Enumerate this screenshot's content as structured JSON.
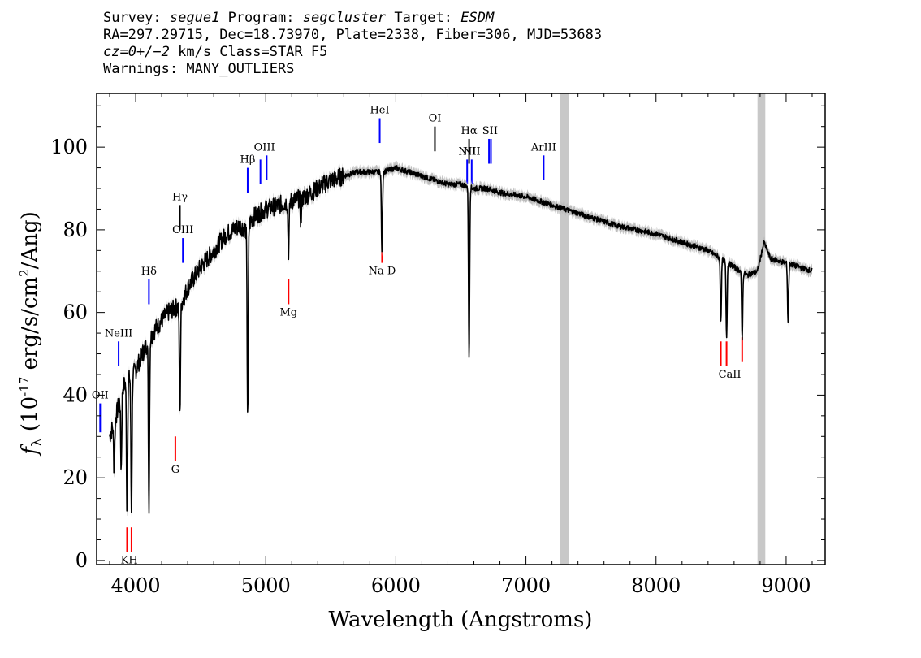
{
  "header": {
    "survey_label": "Survey:",
    "survey": "segue1",
    "program_label": "Program:",
    "program": "segcluster",
    "target_label": "Target:",
    "target": "ESDM",
    "line2": "RA=297.29715, Dec=18.73970, Plate=2338, Fiber=306, MJD=53683",
    "cz": "cz=0+/−2",
    "cz_rest": " km/s Class=STAR F5",
    "warnings": "Warnings: MANY_OUTLIERS"
  },
  "chart_data": {
    "type": "line",
    "xlabel": "Wavelength (Angstroms)",
    "ylabel": "f_λ (10^-17 erg/s/cm^2/Ang)",
    "xlim": [
      3700,
      9300
    ],
    "ylim": [
      -1,
      113
    ],
    "xticks": [
      4000,
      5000,
      6000,
      7000,
      8000,
      9000
    ],
    "yticks": [
      0,
      20,
      40,
      60,
      80,
      100
    ],
    "grid": false,
    "masked_regions": [
      [
        7260,
        7330
      ],
      [
        8780,
        8840
      ]
    ],
    "series": [
      {
        "color": "#000000",
        "continuum": [
          [
            3800,
            30
          ],
          [
            3850,
            35
          ],
          [
            3900,
            42
          ],
          [
            3950,
            44
          ],
          [
            4000,
            46
          ],
          [
            4050,
            50
          ],
          [
            4100,
            53
          ],
          [
            4150,
            56
          ],
          [
            4200,
            58
          ],
          [
            4250,
            60
          ],
          [
            4300,
            61
          ],
          [
            4350,
            62
          ],
          [
            4400,
            66
          ],
          [
            4500,
            71
          ],
          [
            4600,
            75
          ],
          [
            4700,
            79
          ],
          [
            4800,
            81
          ],
          [
            4850,
            80
          ],
          [
            4900,
            83
          ],
          [
            5000,
            85
          ],
          [
            5100,
            86
          ],
          [
            5200,
            87
          ],
          [
            5300,
            88
          ],
          [
            5400,
            90
          ],
          [
            5500,
            92
          ],
          [
            5600,
            93
          ],
          [
            5700,
            94
          ],
          [
            5800,
            94
          ],
          [
            5900,
            94
          ],
          [
            6000,
            95
          ],
          [
            6100,
            94
          ],
          [
            6200,
            93
          ],
          [
            6300,
            92
          ],
          [
            6400,
            91
          ],
          [
            6500,
            91
          ],
          [
            6600,
            90
          ],
          [
            6700,
            90
          ],
          [
            6800,
            89
          ],
          [
            7000,
            88
          ],
          [
            7200,
            86
          ],
          [
            7300,
            85
          ],
          [
            7500,
            83
          ],
          [
            7700,
            81
          ],
          [
            8000,
            79
          ],
          [
            8200,
            77
          ],
          [
            8400,
            75
          ],
          [
            8500,
            73
          ],
          [
            8600,
            71
          ],
          [
            8700,
            69
          ],
          [
            8780,
            70
          ],
          [
            8830,
            77
          ],
          [
            8880,
            73
          ],
          [
            9000,
            72
          ],
          [
            9100,
            71
          ],
          [
            9200,
            70
          ]
        ],
        "absorption": [
          [
            3934,
            32
          ],
          [
            3968,
            33
          ],
          [
            3889,
            18
          ],
          [
            3835,
            12
          ],
          [
            4102,
            40
          ],
          [
            4340,
            27
          ],
          [
            4861,
            45
          ],
          [
            5175,
            12
          ],
          [
            5270,
            6
          ],
          [
            5893,
            20
          ],
          [
            6563,
            42
          ],
          [
            8498,
            15
          ],
          [
            8542,
            18
          ],
          [
            8662,
            16
          ],
          [
            9015,
            14
          ]
        ]
      }
    ],
    "emission_markers": [
      {
        "label": "OII",
        "wavelength": 3727,
        "y_top": 38,
        "y_bottom": 31,
        "color": "#0000ff"
      },
      {
        "label": "NeIII",
        "wavelength": 3869,
        "y_top": 53,
        "y_bottom": 47,
        "color": "#0000ff"
      },
      {
        "label": "Hδ",
        "wavelength": 4102,
        "y_top": 68,
        "y_bottom": 62,
        "color": "#0000ff"
      },
      {
        "label": "Hγ",
        "wavelength": 4340,
        "y_top": 86,
        "y_bottom": 80,
        "color": "#000000"
      },
      {
        "label": "OIII",
        "wavelength": 4363,
        "y_top": 78,
        "y_bottom": 72,
        "color": "#0000ff"
      },
      {
        "label": "Hβ",
        "wavelength": 4861,
        "y_top": 95,
        "y_bottom": 89,
        "color": "#0000ff"
      },
      {
        "label": "OIII",
        "wavelength": 4959,
        "y_top": 97,
        "y_bottom": 91,
        "color": "#0000ff"
      },
      {
        "label": "OIII",
        "wavelength": 5007,
        "y_top": 98,
        "y_bottom": 92,
        "color": "#0000ff"
      },
      {
        "label": "HeI",
        "wavelength": 5876,
        "y_top": 107,
        "y_bottom": 101,
        "color": "#0000ff"
      },
      {
        "label": "OI",
        "wavelength": 6300,
        "y_top": 105,
        "y_bottom": 99,
        "color": "#000000"
      },
      {
        "label": "NII",
        "wavelength": 6548,
        "y_top": 97,
        "y_bottom": 91,
        "color": "#0000ff"
      },
      {
        "label": "Hα",
        "wavelength": 6563,
        "y_top": 102,
        "y_bottom": 96,
        "color": "#000000"
      },
      {
        "label": "NII",
        "wavelength": 6583,
        "y_top": 97,
        "y_bottom": 91,
        "color": "#0000ff"
      },
      {
        "label": "SII",
        "wavelength": 6716,
        "y_top": 102,
        "y_bottom": 96,
        "color": "#0000ff"
      },
      {
        "label": "SII",
        "wavelength": 6731,
        "y_top": 102,
        "y_bottom": 96,
        "color": "#0000ff"
      },
      {
        "label": "ArIII",
        "wavelength": 7136,
        "y_top": 98,
        "y_bottom": 92,
        "color": "#0000ff"
      }
    ],
    "absorption_markers": [
      {
        "label": "K",
        "wavelength": 3934,
        "y_top": 8,
        "y_bottom": 2,
        "color": "#ff0000"
      },
      {
        "label": "H",
        "wavelength": 3968,
        "y_top": 8,
        "y_bottom": 2,
        "color": "#ff0000"
      },
      {
        "label": "G",
        "wavelength": 4305,
        "y_top": 30,
        "y_bottom": 24,
        "color": "#ff0000"
      },
      {
        "label": "Mg",
        "wavelength": 5175,
        "y_top": 68,
        "y_bottom": 62,
        "color": "#ff0000"
      },
      {
        "label": "Na",
        "wavelength": 5894,
        "y_top": 78,
        "y_bottom": 72,
        "color": "#ff0000"
      },
      {
        "label": "CaII",
        "wavelength": 8498,
        "y_top": 53,
        "y_bottom": 47,
        "color": "#ff0000"
      },
      {
        "label": "CaII",
        "wavelength": 8542,
        "y_top": 53,
        "y_bottom": 47,
        "color": "#ff0000"
      },
      {
        "label": "CaII",
        "wavelength": 8662,
        "y_top": 54,
        "y_bottom": 48,
        "color": "#ff0000"
      }
    ],
    "line_labels": [
      {
        "text": "OII",
        "wavelength": 3727
      },
      {
        "text": "NeIII",
        "wavelength": 3869
      },
      {
        "text": "Hδ",
        "wavelength": 4102
      },
      {
        "text": "Hγ",
        "wavelength": 4340
      },
      {
        "text": "OIII",
        "wavelength": 4363
      },
      {
        "text": "Hβ",
        "wavelength": 4861
      },
      {
        "text": "OIII",
        "wavelength": 4990
      },
      {
        "text": "HeI",
        "wavelength": 5876
      },
      {
        "text": "OI",
        "wavelength": 6300
      },
      {
        "text": "NII",
        "wavelength": 6548
      },
      {
        "text": "Hα",
        "wavelength": 6563
      },
      {
        "text": "SII",
        "wavelength": 6724
      },
      {
        "text": "NII",
        "wavelength": 6583
      },
      {
        "text": "ArIII",
        "wavelength": 7136
      },
      {
        "text": "KH",
        "wavelength": 3951
      },
      {
        "text": "G",
        "wavelength": 4305
      },
      {
        "text": "Mg",
        "wavelength": 5175
      },
      {
        "text": "Na D",
        "wavelength": 5894
      },
      {
        "text": "CaII",
        "wavelength": 8567
      }
    ]
  }
}
